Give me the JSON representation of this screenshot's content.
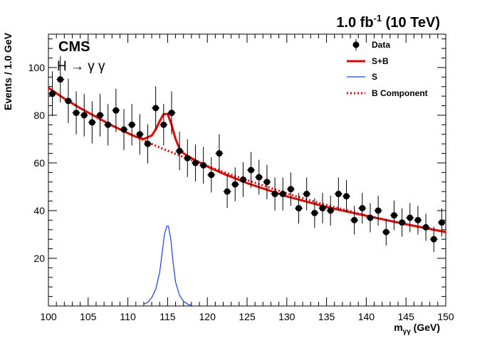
{
  "chart_data": {
    "type": "scatter",
    "top_label_main": "1.0 fb",
    "top_label_sup": "-1",
    "top_label_tail": " (10 TeV)",
    "experiment": "CMS",
    "process": "H → γ γ",
    "xlabel_main": "m",
    "xlabel_sub": "γγ",
    "xlabel_tail": " (GeV)",
    "ylabel": "Events / 1.0 GeV",
    "xlim": [
      100,
      150
    ],
    "ylim": [
      0,
      114
    ],
    "x_ticks": [
      100,
      105,
      110,
      115,
      120,
      125,
      130,
      135,
      140,
      145,
      150
    ],
    "y_ticks": [
      20,
      40,
      60,
      80,
      100
    ],
    "legend": [
      {
        "label": "Data",
        "style": "marker",
        "color": "#000000"
      },
      {
        "label": "S+B",
        "style": "solid-thick",
        "color": "#e00000"
      },
      {
        "label": "S",
        "style": "solid-thin",
        "color": "#1f3fd0"
      },
      {
        "label": "B Component",
        "style": "dotted",
        "color": "#e00000"
      }
    ],
    "legend_position": "top-right",
    "series": [
      {
        "name": "Data",
        "x": [
          100.5,
          101.5,
          102.5,
          103.5,
          104.5,
          105.5,
          106.5,
          107.5,
          108.5,
          109.5,
          110.5,
          111.5,
          112.5,
          113.5,
          114.5,
          115.5,
          116.5,
          117.5,
          118.5,
          119.5,
          120.5,
          121.5,
          122.5,
          123.5,
          124.5,
          125.5,
          126.5,
          127.5,
          128.5,
          129.5,
          130.5,
          131.5,
          132.5,
          133.5,
          134.5,
          135.5,
          136.5,
          137.5,
          138.5,
          139.5,
          140.5,
          141.5,
          142.5,
          143.5,
          144.5,
          145.5,
          146.5,
          147.5,
          148.5,
          149.5
        ],
        "y": [
          89,
          95,
          86,
          81,
          80,
          77,
          80,
          76,
          82,
          74,
          76,
          72,
          68,
          83,
          76,
          81,
          65,
          62,
          60,
          59,
          55,
          64,
          48,
          51,
          53,
          57,
          54,
          52,
          47,
          47,
          49,
          41,
          47,
          39,
          41,
          40,
          47,
          46,
          36,
          41,
          37,
          40,
          31,
          38,
          35,
          37,
          36,
          33,
          28,
          35
        ],
        "err": [
          9.4,
          9.7,
          9.3,
          9.0,
          8.9,
          8.8,
          8.9,
          8.7,
          9.1,
          8.6,
          8.7,
          8.5,
          8.2,
          9.1,
          8.7,
          9.0,
          8.1,
          7.9,
          7.7,
          7.7,
          7.4,
          8.0,
          6.9,
          7.1,
          7.3,
          7.5,
          7.3,
          7.2,
          6.9,
          6.9,
          7.0,
          6.4,
          6.9,
          6.2,
          6.4,
          6.3,
          6.9,
          6.8,
          6.0,
          6.4,
          6.1,
          6.3,
          5.6,
          6.2,
          5.9,
          6.1,
          6.0,
          5.7,
          5.3,
          5.9
        ]
      },
      {
        "name": "S+B",
        "x": [
          100,
          102,
          104,
          106,
          108,
          110,
          111,
          112,
          113,
          113.5,
          114,
          114.5,
          115,
          115.5,
          116,
          116.5,
          117,
          118,
          120,
          122,
          125,
          130,
          135,
          140,
          145,
          150
        ],
        "y": [
          91.5,
          87,
          83,
          79.3,
          75.7,
          72.5,
          71,
          70,
          71.5,
          74,
          77.5,
          80.5,
          80.5,
          76,
          70,
          66,
          64,
          62,
          58.5,
          55.5,
          51.5,
          46,
          41.5,
          37.8,
          34.3,
          31
        ]
      },
      {
        "name": "S",
        "x": [
          112,
          112.5,
          113,
          113.5,
          114,
          114.3,
          114.6,
          114.9,
          115.1,
          115.4,
          115.7,
          116,
          116.5,
          117,
          117.5,
          118
        ],
        "y": [
          0.8,
          1.5,
          3.5,
          7,
          14,
          22,
          30,
          33.5,
          33.5,
          28,
          18,
          10,
          4.5,
          2,
          0.8,
          0.2
        ]
      },
      {
        "name": "B Component",
        "x": [
          100,
          102,
          104,
          106,
          108,
          110,
          112,
          114,
          116,
          118,
          120,
          122,
          125,
          130,
          135,
          140,
          145,
          150
        ],
        "y": [
          91.5,
          87,
          83,
          79.3,
          75.7,
          72.5,
          69.4,
          66.5,
          63.8,
          61.2,
          58.7,
          56.2,
          52.8,
          47.2,
          42.3,
          38,
          34.2,
          31
        ]
      }
    ]
  }
}
